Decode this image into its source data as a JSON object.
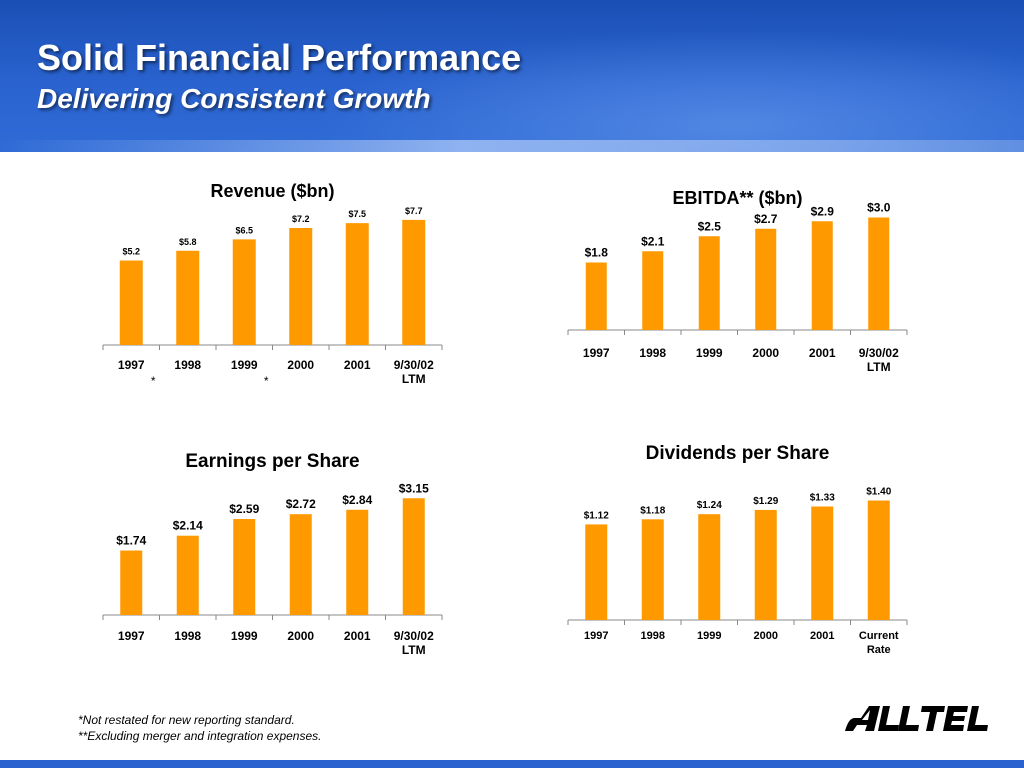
{
  "header": {
    "title": "Solid Financial Performance",
    "subtitle": "Delivering Consistent Growth"
  },
  "colors": {
    "bar": "#ff9900",
    "header": "#2a63cf"
  },
  "chart_data": [
    {
      "type": "bar",
      "title": "Revenue ($bn)",
      "categories": [
        "1997",
        "1998",
        "1999",
        "2000",
        "2001",
        "9/30/02\nLTM"
      ],
      "values": [
        5.2,
        5.8,
        6.5,
        7.2,
        7.5,
        7.7
      ],
      "value_labels": [
        "$5.2",
        "$5.8",
        "$6.5",
        "$7.2",
        "$7.5",
        "$7.7"
      ],
      "category_marks": [
        "*",
        "",
        "*",
        "",
        "",
        ""
      ],
      "xlabel": "",
      "ylabel": "",
      "ylim": [
        0,
        8
      ]
    },
    {
      "type": "bar",
      "title": "EBITDA** ($bn)",
      "categories": [
        "1997",
        "1998",
        "1999",
        "2000",
        "2001",
        "9/30/02\nLTM"
      ],
      "values": [
        1.8,
        2.1,
        2.5,
        2.7,
        2.9,
        3.0
      ],
      "value_labels": [
        "$1.8",
        "$2.1",
        "$2.5",
        "$2.7",
        "$2.9",
        "$3.0"
      ],
      "xlabel": "",
      "ylabel": "",
      "ylim": [
        0,
        3.2
      ]
    },
    {
      "type": "bar",
      "title": "Earnings per Share",
      "categories": [
        "1997",
        "1998",
        "1999",
        "2000",
        "2001",
        "9/30/02\nLTM"
      ],
      "values": [
        1.74,
        2.14,
        2.59,
        2.72,
        2.84,
        3.15
      ],
      "value_labels": [
        "$1.74",
        "$2.14",
        "$2.59",
        "$2.72",
        "$2.84",
        "$3.15"
      ],
      "xlabel": "",
      "ylabel": "",
      "ylim": [
        0,
        3.4
      ]
    },
    {
      "type": "bar",
      "title": "Dividends per Share",
      "categories": [
        "1997",
        "1998",
        "1999",
        "2000",
        "2001",
        "Current\nRate"
      ],
      "values": [
        1.12,
        1.18,
        1.24,
        1.29,
        1.33,
        1.4
      ],
      "value_labels": [
        "$1.12",
        "$1.18",
        "$1.24",
        "$1.29",
        "$1.33",
        "$1.40"
      ],
      "xlabel": "",
      "ylabel": "",
      "ylim": [
        0,
        1.5
      ]
    }
  ],
  "footnotes": [
    "*Not restated for new reporting standard.",
    "**Excluding merger and integration expenses."
  ],
  "logo": {
    "text": "ALLTEL"
  }
}
